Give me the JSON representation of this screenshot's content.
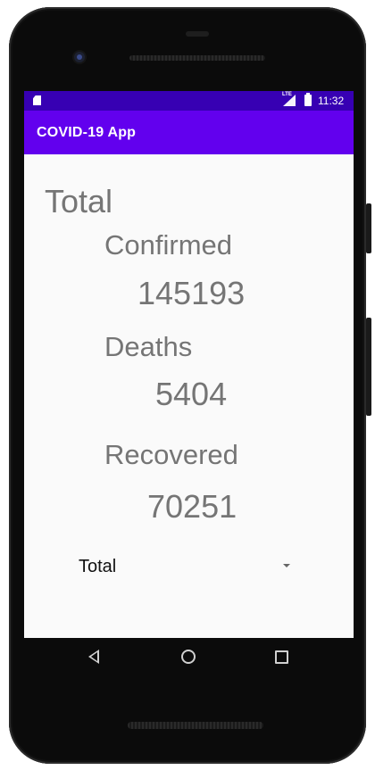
{
  "status_bar": {
    "time": "11:32",
    "network_label": "LTE",
    "icons": [
      "sd-card-icon",
      "lte-signal-icon",
      "battery-icon"
    ]
  },
  "app_bar": {
    "title": "COVID-19 App",
    "color": "#6200ee",
    "status_color": "#3700b3"
  },
  "stats": {
    "section_title": "Total",
    "confirmed_label": "Confirmed",
    "confirmed_value": "145193",
    "deaths_label": "Deaths",
    "deaths_value": "5404",
    "recovered_label": "Recovered",
    "recovered_value": "70251"
  },
  "spinner": {
    "selected": "Total"
  },
  "nav_bar": {
    "icons": [
      "back-icon",
      "home-icon",
      "recents-icon"
    ]
  }
}
